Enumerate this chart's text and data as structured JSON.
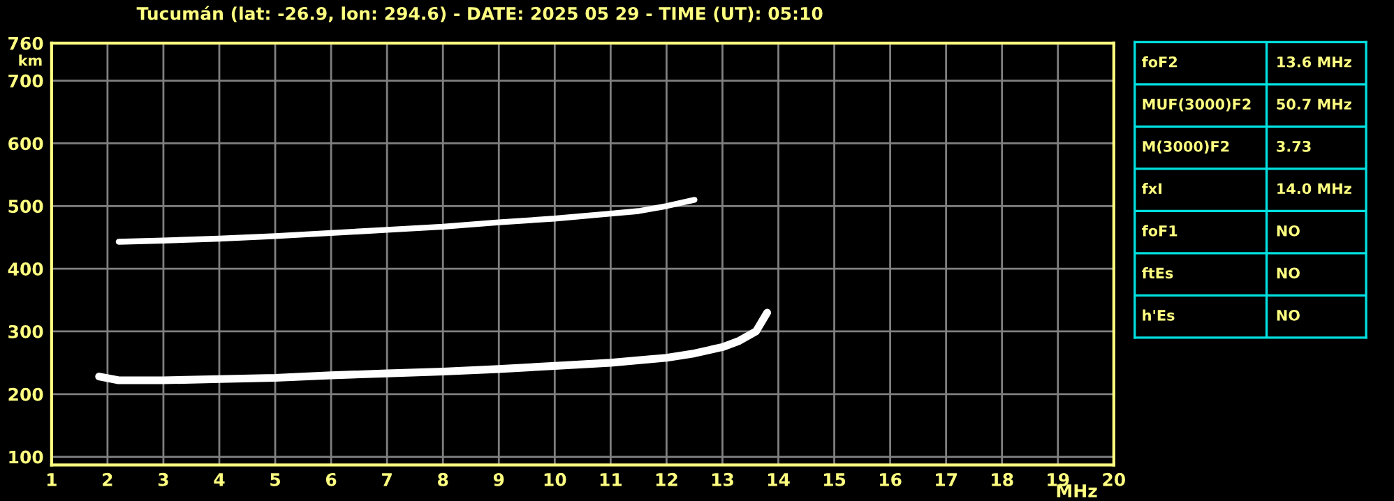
{
  "chart_data": [
    {
      "type": "line",
      "title": "Tucumán (lat: -26.9, lon: 294.6) - DATE: 2025 05 29 - TIME (UT): 05:10",
      "xlabel": "MHz",
      "ylabel": "km",
      "series": [
        {
          "color": "#ffffff",
          "x": [
            1.85,
            2.2,
            3,
            4,
            5,
            6,
            7,
            8,
            9,
            10,
            11,
            12,
            12.5,
            13,
            13.3,
            13.6,
            13.8
          ],
          "values": [
            228,
            222,
            222,
            224,
            226,
            230,
            233,
            236,
            240,
            245,
            250,
            258,
            265,
            275,
            285,
            300,
            330
          ]
        },
        {
          "color": "#ffffff",
          "x": [
            2.2,
            3,
            4,
            5,
            6,
            7,
            8,
            9,
            10,
            11,
            11.5,
            12,
            12.5
          ],
          "values": [
            443,
            445,
            448,
            452,
            457,
            462,
            467,
            474,
            480,
            488,
            492,
            500,
            510
          ]
        }
      ],
      "xlim": [
        1,
        20
      ],
      "ylim": [
        87,
        760
      ],
      "xticks": [
        1,
        2,
        3,
        4,
        5,
        6,
        7,
        8,
        9,
        10,
        11,
        12,
        13,
        14,
        15,
        16,
        17,
        18,
        19,
        20
      ],
      "yticks": [
        100,
        200,
        300,
        400,
        500,
        600,
        700,
        760
      ],
      "grid": true,
      "marker": "none",
      "line_style": "solid",
      "legend": false
    },
    {
      "type": "other",
      "annotations": [
        "foF2",
        "13.6 MHz",
        "MUF(3000)F2",
        "50.7 MHz",
        "M(3000)F2",
        "3.73",
        "fxI",
        "14.0 MHz",
        "foF1",
        "NO",
        "ftEs",
        "NO",
        "h'Es",
        "NO"
      ]
    }
  ]
}
